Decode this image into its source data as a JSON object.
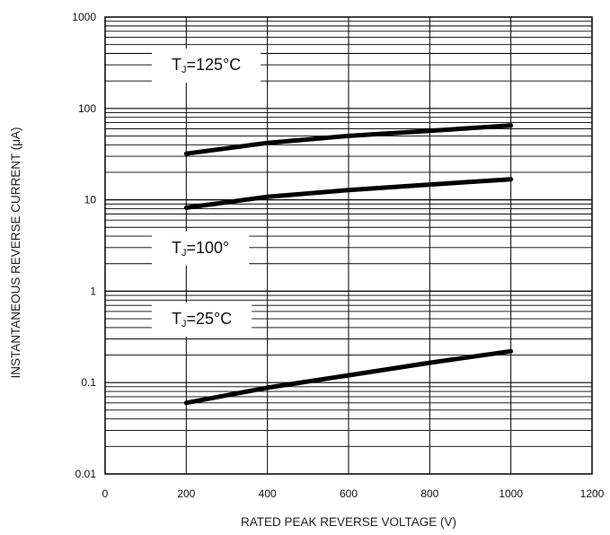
{
  "chart_data": {
    "type": "line",
    "title": "",
    "xlabel": "RATED PEAK REVERSE VOLTAGE (V)",
    "ylabel": "INSTANTANEOUS REVERSE CURRENT (μA)",
    "xlim": [
      0,
      1200
    ],
    "ylim": [
      0.01,
      1000
    ],
    "yscale": "log",
    "grid": true,
    "x_ticks": [
      0,
      200,
      400,
      600,
      800,
      1000,
      1200
    ],
    "x_tick_labels": [
      "0",
      "200",
      "400",
      "600",
      "800",
      "1000",
      "1200"
    ],
    "y_ticks": [
      0.01,
      0.1,
      1,
      10,
      100,
      1000
    ],
    "y_tick_labels": [
      "0.01",
      "0.1",
      "1",
      "10",
      "100",
      "1000"
    ],
    "series": [
      {
        "name": "TJ=125°C",
        "x": [
          200,
          400,
          600,
          800,
          1000
        ],
        "y": [
          32,
          42,
          50,
          57,
          65
        ]
      },
      {
        "name": "TJ=100°",
        "x": [
          200,
          400,
          600,
          800,
          1000
        ],
        "y": [
          8.2,
          10.8,
          12.8,
          14.7,
          16.8
        ]
      },
      {
        "name": "TJ=25°C",
        "x": [
          200,
          400,
          600,
          800,
          1000
        ],
        "y": [
          0.06,
          0.088,
          0.12,
          0.165,
          0.22
        ]
      }
    ],
    "annotations": [
      {
        "text_main": "T",
        "text_sub": "J",
        "text_rest": "=125°C",
        "x": 217,
        "y": 300
      },
      {
        "text_main": "T",
        "text_sub": "J",
        "text_rest": "=100°",
        "x": 217,
        "y": 3.0
      },
      {
        "text_main": "T",
        "text_sub": "J",
        "text_rest": "=25°C",
        "x": 217,
        "y": 0.5
      }
    ]
  }
}
